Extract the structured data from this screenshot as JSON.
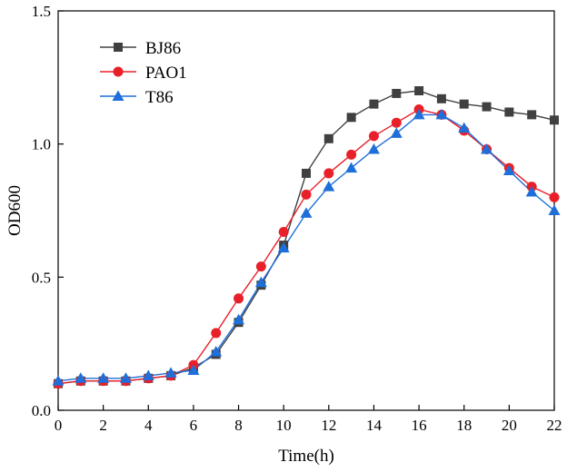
{
  "chart_data": {
    "type": "line",
    "title": "",
    "xlabel": "Time(h)",
    "ylabel": "OD600",
    "xlim": [
      0,
      22
    ],
    "ylim": [
      0,
      1.5
    ],
    "x_ticks": [
      0,
      2,
      4,
      6,
      8,
      10,
      12,
      14,
      16,
      18,
      20,
      22
    ],
    "y_ticks": [
      0.0,
      0.5,
      1.0,
      1.5
    ],
    "x_tick_labels": [
      "0",
      "2",
      "4",
      "6",
      "8",
      "10",
      "12",
      "14",
      "16",
      "18",
      "20",
      "22"
    ],
    "y_tick_labels": [
      "0.0",
      "0.5",
      "1.0",
      "1.5"
    ],
    "grid": false,
    "legend_position": "top-left",
    "x": [
      0,
      1,
      2,
      3,
      4,
      5,
      6,
      7,
      8,
      9,
      10,
      11,
      12,
      13,
      14,
      15,
      16,
      17,
      18,
      19,
      20,
      21,
      22
    ],
    "series": [
      {
        "name": "BJ86",
        "color": "#404040",
        "marker": "square",
        "values": [
          0.1,
          0.11,
          0.11,
          0.11,
          0.12,
          0.13,
          0.16,
          0.21,
          0.33,
          0.47,
          0.62,
          0.89,
          1.02,
          1.1,
          1.15,
          1.19,
          1.2,
          1.17,
          1.15,
          1.14,
          1.12,
          1.11,
          1.09
        ]
      },
      {
        "name": "PAO1",
        "color": "#e8202a",
        "marker": "circle",
        "values": [
          0.1,
          0.11,
          0.11,
          0.11,
          0.12,
          0.13,
          0.17,
          0.29,
          0.42,
          0.54,
          0.67,
          0.81,
          0.89,
          0.96,
          1.03,
          1.08,
          1.13,
          1.11,
          1.05,
          0.98,
          0.91,
          0.84,
          0.8
        ]
      },
      {
        "name": "T86",
        "color": "#1e6fd9",
        "marker": "triangle",
        "values": [
          0.11,
          0.12,
          0.12,
          0.12,
          0.13,
          0.14,
          0.15,
          0.22,
          0.34,
          0.48,
          0.61,
          0.74,
          0.84,
          0.91,
          0.98,
          1.04,
          1.11,
          1.11,
          1.06,
          0.98,
          0.9,
          0.82,
          0.75
        ]
      }
    ]
  }
}
